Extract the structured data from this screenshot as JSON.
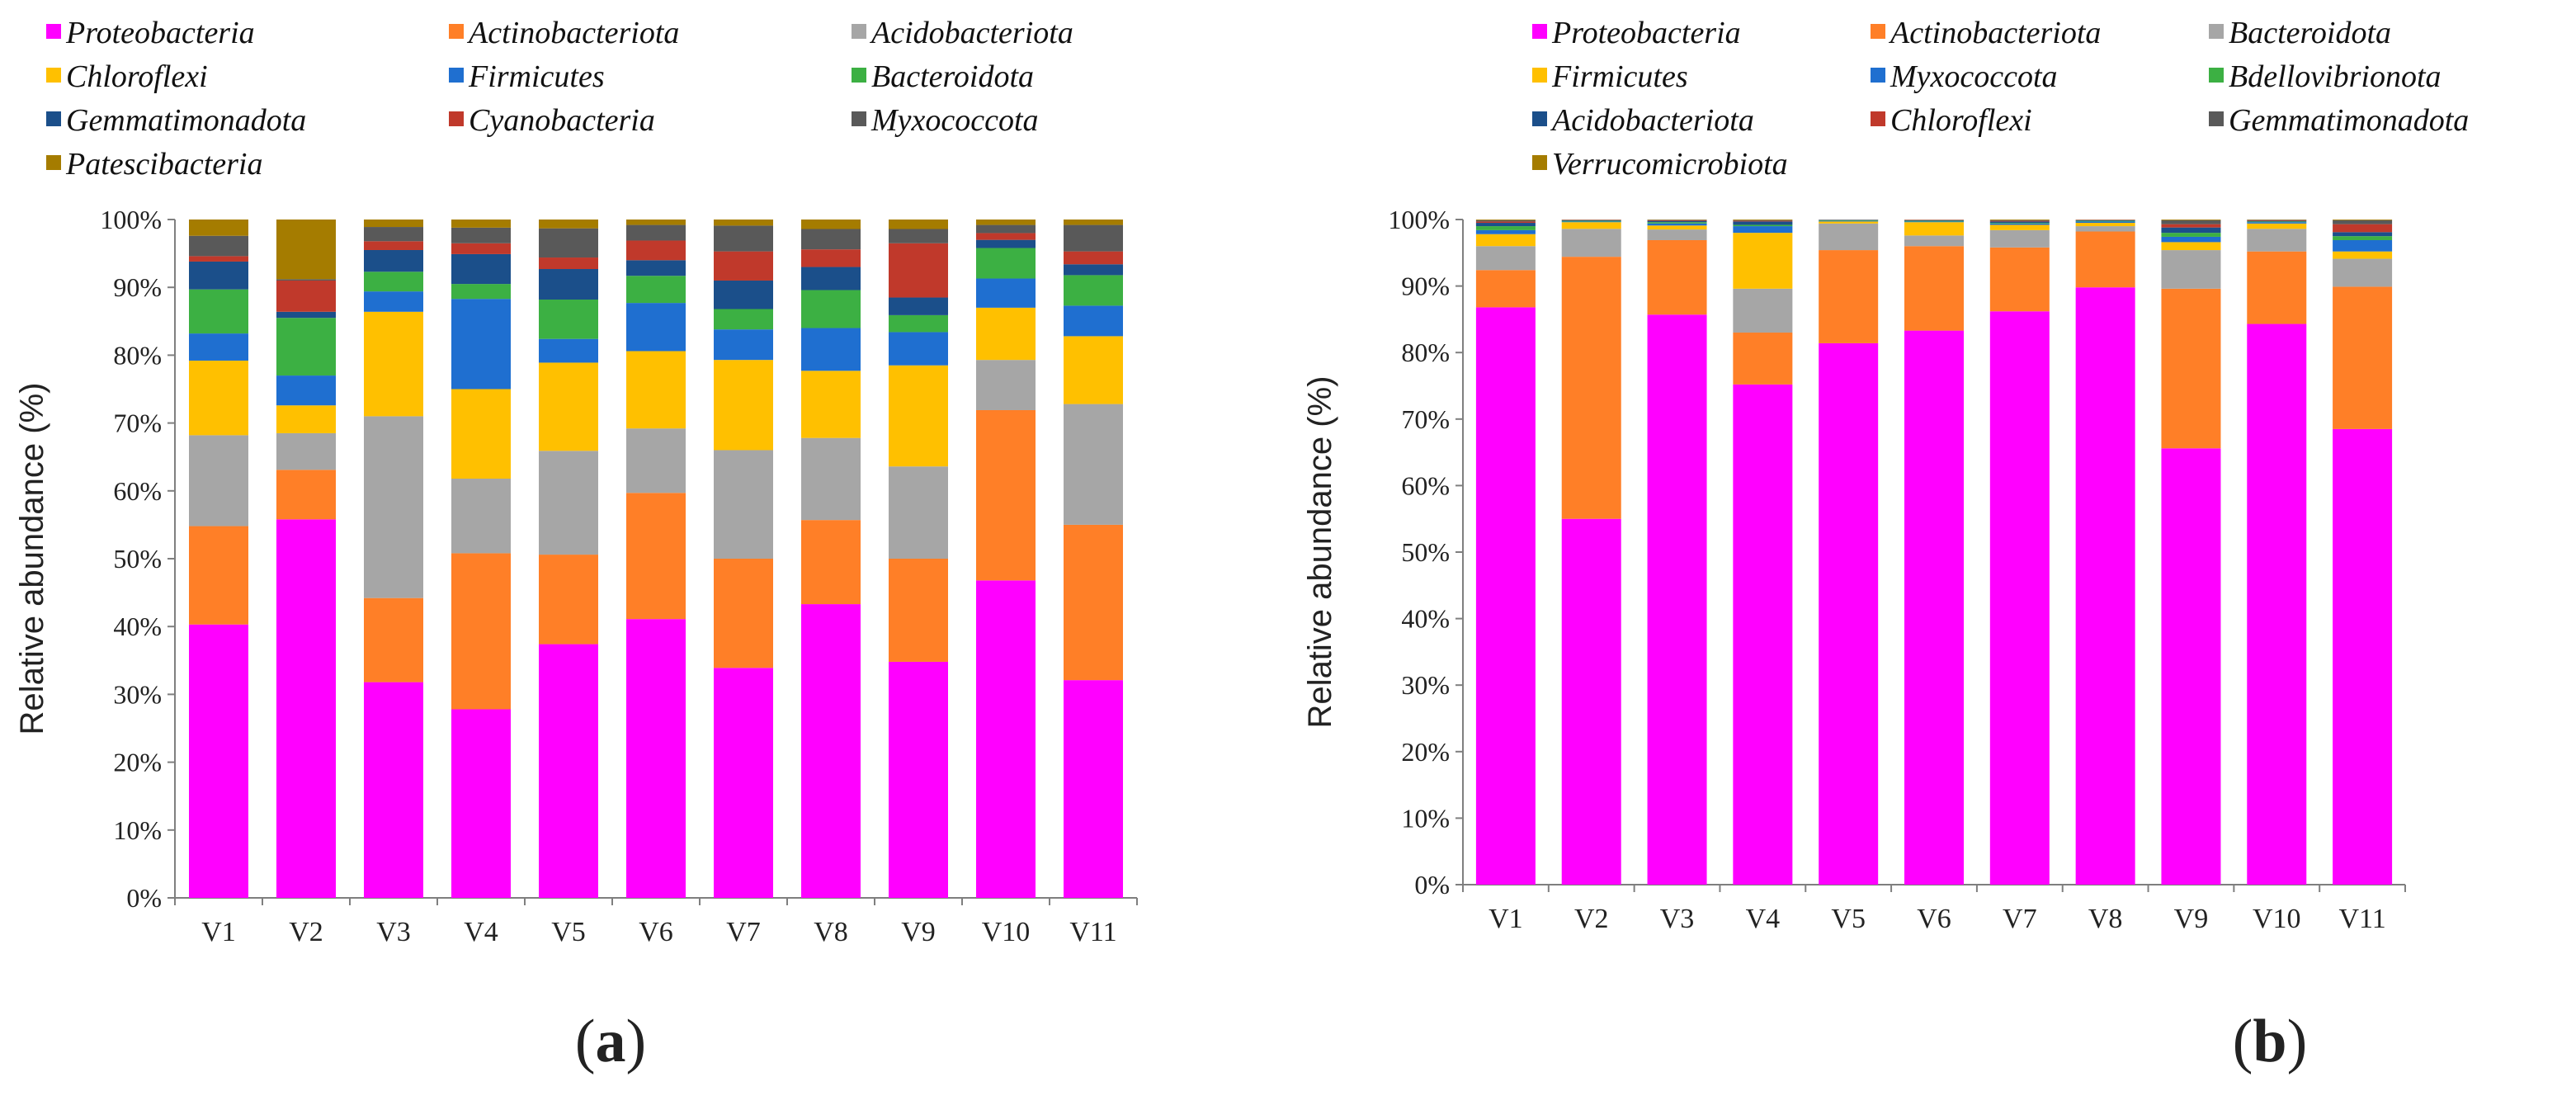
{
  "chart_data": [
    {
      "type": "bar",
      "stacked": true,
      "panel_label": "a",
      "ylabel": "Relative abundance (%)",
      "ylim": [
        0,
        100
      ],
      "yticks": [
        "0%",
        "10%",
        "20%",
        "30%",
        "40%",
        "50%",
        "60%",
        "70%",
        "80%",
        "90%",
        "100%"
      ],
      "categories": [
        "V1",
        "V2",
        "V3",
        "V4",
        "V5",
        "V6",
        "V7",
        "V8",
        "V9",
        "V10",
        "V11"
      ],
      "legend_position": "top",
      "series": [
        {
          "name": "Proteobacteria",
          "color": "#ff00ff",
          "values": [
            40.3,
            55.8,
            31.8,
            27.8,
            37.4,
            41.1,
            33.9,
            43.3,
            34.8,
            46.8,
            32.1
          ]
        },
        {
          "name": "Actinobacteriota",
          "color": "#ff7f27",
          "values": [
            14.5,
            7.3,
            12.4,
            23.0,
            13.2,
            18.6,
            16.1,
            12.4,
            15.2,
            25.1,
            22.9
          ]
        },
        {
          "name": "Acidobacteriota",
          "color": "#a6a6a6",
          "values": [
            13.4,
            5.4,
            26.8,
            11.0,
            15.3,
            9.5,
            16.0,
            12.1,
            13.6,
            7.4,
            17.8
          ]
        },
        {
          "name": "Chloroflexi",
          "color": "#ffc000",
          "values": [
            11.0,
            4.1,
            15.4,
            13.2,
            13.0,
            11.4,
            13.3,
            9.9,
            14.9,
            7.7,
            10.0
          ]
        },
        {
          "name": "Firmicutes",
          "color": "#1f6fd0",
          "values": [
            4.0,
            4.4,
            3.0,
            13.3,
            3.5,
            7.1,
            4.5,
            6.3,
            4.9,
            4.3,
            4.5
          ]
        },
        {
          "name": "Bacteroidota",
          "color": "#3cb043",
          "values": [
            6.5,
            8.5,
            2.9,
            2.2,
            5.8,
            4.0,
            3.0,
            5.6,
            2.5,
            4.5,
            4.5
          ]
        },
        {
          "name": "Gemmatimonadota",
          "color": "#1b4f8a",
          "values": [
            4.1,
            0.9,
            3.2,
            4.4,
            4.5,
            2.3,
            4.2,
            3.4,
            2.6,
            1.2,
            1.6
          ]
        },
        {
          "name": "Cyanobacteria",
          "color": "#c0392b",
          "values": [
            0.8,
            4.6,
            1.3,
            1.6,
            1.7,
            2.9,
            4.3,
            2.6,
            8.0,
            1.0,
            1.9
          ]
        },
        {
          "name": "Myxococcota",
          "color": "#595959",
          "values": [
            3.0,
            0.2,
            2.1,
            2.3,
            4.3,
            2.3,
            3.8,
            3.0,
            2.1,
            1.2,
            3.9
          ]
        },
        {
          "name": "Patescibacteria",
          "color": "#a57c00",
          "values": [
            2.4,
            8.8,
            1.1,
            1.2,
            1.3,
            0.8,
            0.9,
            1.4,
            1.4,
            0.8,
            0.8
          ]
        }
      ]
    },
    {
      "type": "bar",
      "stacked": true,
      "panel_label": "b",
      "ylabel": "Relative abundance (%)",
      "ylim": [
        0,
        100
      ],
      "yticks": [
        "0%",
        "10%",
        "20%",
        "30%",
        "40%",
        "50%",
        "60%",
        "70%",
        "80%",
        "90%",
        "100%"
      ],
      "categories": [
        "V1",
        "V2",
        "V3",
        "V4",
        "V5",
        "V6",
        "V7",
        "V8",
        "V9",
        "V10",
        "V11"
      ],
      "legend_position": "top",
      "series": [
        {
          "name": "Proteobacteria",
          "color": "#ff00ff",
          "values": [
            86.8,
            55.0,
            85.7,
            75.2,
            81.4,
            83.3,
            86.2,
            89.8,
            65.6,
            84.3,
            68.5
          ]
        },
        {
          "name": "Actinobacteriota",
          "color": "#ff7f27",
          "values": [
            5.6,
            39.4,
            11.2,
            7.8,
            14.0,
            12.7,
            9.6,
            8.4,
            24.0,
            10.9,
            21.4
          ]
        },
        {
          "name": "Bacteroidota",
          "color": "#a6a6a6",
          "values": [
            3.6,
            4.2,
            1.6,
            6.6,
            4.0,
            1.6,
            2.6,
            0.8,
            5.8,
            3.4,
            4.2
          ]
        },
        {
          "name": "Firmicutes",
          "color": "#ffc000",
          "values": [
            1.8,
            1.0,
            0.6,
            8.4,
            0.3,
            2.0,
            0.8,
            0.5,
            1.2,
            0.8,
            1.1
          ]
        },
        {
          "name": "Myxococcota",
          "color": "#1f6fd0",
          "values": [
            0.6,
            0.1,
            0.3,
            1.0,
            0.1,
            0.1,
            0.2,
            0.2,
            0.8,
            0.2,
            1.7
          ]
        },
        {
          "name": "Bdellovibrionota",
          "color": "#3cb043",
          "values": [
            0.6,
            0.1,
            0.2,
            0.2,
            0.1,
            0.1,
            0.1,
            0.1,
            0.6,
            0.1,
            0.6
          ]
        },
        {
          "name": "Acidobacteriota",
          "color": "#1b4f8a",
          "values": [
            0.5,
            0.1,
            0.2,
            0.5,
            0.05,
            0.1,
            0.2,
            0.1,
            0.8,
            0.1,
            0.6
          ]
        },
        {
          "name": "Chloroflexi",
          "color": "#c0392b",
          "values": [
            0.2,
            0.05,
            0.1,
            0.1,
            0.02,
            0.05,
            0.1,
            0.05,
            0.5,
            0.1,
            1.2
          ]
        },
        {
          "name": "Gemmatimonadota",
          "color": "#595959",
          "values": [
            0.2,
            0.03,
            0.05,
            0.1,
            0.02,
            0.02,
            0.1,
            0.02,
            0.6,
            0.05,
            0.6
          ]
        },
        {
          "name": "Verrucomicrobiota",
          "color": "#a57c00",
          "values": [
            0.1,
            0.02,
            0.05,
            0.1,
            0.01,
            0.02,
            0.1,
            0.03,
            0.1,
            0.05,
            0.1
          ]
        }
      ]
    }
  ]
}
